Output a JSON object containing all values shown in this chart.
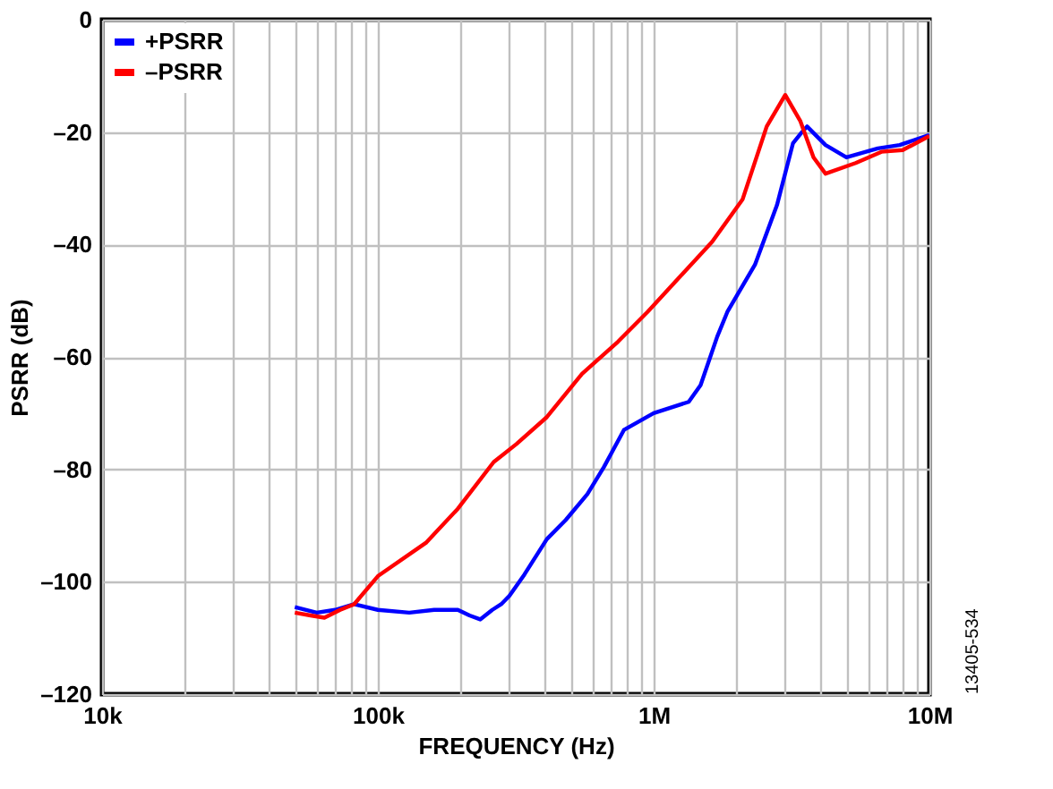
{
  "chart_data": {
    "type": "line",
    "xlabel": "FREQUENCY (Hz)",
    "ylabel": "PSRR (dB)",
    "log": "x",
    "grid": true,
    "legend": "top left",
    "line_style": "solid",
    "marker": "none",
    "xlim": [
      10000,
      10000000
    ],
    "ylim": [
      -120,
      0
    ],
    "xticks": [
      {
        "value": 10000,
        "label": "10k"
      },
      {
        "value": 20000,
        "label": null
      },
      {
        "value": 30000,
        "label": null
      },
      {
        "value": 40000,
        "label": null
      },
      {
        "value": 50000,
        "label": null
      },
      {
        "value": 60000,
        "label": null
      },
      {
        "value": 70000,
        "label": null
      },
      {
        "value": 80000,
        "label": null
      },
      {
        "value": 90000,
        "label": null
      },
      {
        "value": 100000,
        "label": "100k"
      },
      {
        "value": 200000,
        "label": null
      },
      {
        "value": 300000,
        "label": null
      },
      {
        "value": 400000,
        "label": null
      },
      {
        "value": 500000,
        "label": null
      },
      {
        "value": 600000,
        "label": null
      },
      {
        "value": 700000,
        "label": null
      },
      {
        "value": 800000,
        "label": null
      },
      {
        "value": 900000,
        "label": null
      },
      {
        "value": 1000000,
        "label": "1M"
      },
      {
        "value": 2000000,
        "label": null
      },
      {
        "value": 3000000,
        "label": null
      },
      {
        "value": 4000000,
        "label": null
      },
      {
        "value": 5000000,
        "label": null
      },
      {
        "value": 6000000,
        "label": null
      },
      {
        "value": 7000000,
        "label": null
      },
      {
        "value": 8000000,
        "label": null
      },
      {
        "value": 9000000,
        "label": null
      },
      {
        "value": 10000000,
        "label": "10M"
      }
    ],
    "yticks": [
      {
        "value": -120,
        "label": "–120"
      },
      {
        "value": -100,
        "label": "–100"
      },
      {
        "value": -80,
        "label": "–80"
      },
      {
        "value": -60,
        "label": "–60"
      },
      {
        "value": -40,
        "label": "–40"
      },
      {
        "value": -20,
        "label": "–20"
      },
      0
    ],
    "annotations": [
      "13405-534"
    ],
    "series": [
      {
        "name": "+PSRR",
        "color": "#0000ff",
        "x": [
          50000,
          60000,
          70000,
          82000,
          100000,
          130000,
          160000,
          195000,
          215000,
          235000,
          260000,
          280000,
          300000,
          340000,
          410000,
          480000,
          575000,
          660000,
          780000,
          1000000,
          1340000,
          1480000,
          1700000,
          1850000,
          2330000,
          2800000,
          3200000,
          3450000,
          3600000,
          4200000,
          5000000,
          6500000,
          7800000,
          10000000
        ],
        "values": [
          -104.5,
          -105.5,
          -105,
          -104,
          -105,
          -105.5,
          -105,
          -105,
          -106,
          -106.7,
          -105,
          -104,
          -102.5,
          -98.7,
          -92.4,
          -89,
          -84.4,
          -79.6,
          -73,
          -70,
          -68,
          -65,
          -56.4,
          -52,
          -43.6,
          -33,
          -22,
          -20,
          -19,
          -22.3,
          -24.5,
          -22.9,
          -22.3,
          -20.5
        ]
      },
      {
        "name": "–PSRR",
        "color": "#ff0000",
        "x": [
          50000,
          57000,
          64000,
          73000,
          82000,
          100000,
          150000,
          195000,
          263000,
          318000,
          410000,
          550000,
          742000,
          950000,
          1630000,
          2100000,
          2570000,
          3000000,
          3400000,
          3800000,
          4200000,
          5400000,
          6700000,
          8000000,
          10000000
        ],
        "values": [
          -105.5,
          -106,
          -106.4,
          -105,
          -104,
          -99,
          -93,
          -87,
          -78.7,
          -75.5,
          -70.7,
          -63,
          -57.3,
          -52,
          -39.5,
          -32,
          -19,
          -13.4,
          -18,
          -24.5,
          -27.4,
          -25.5,
          -23.5,
          -23.2,
          -20.7
        ]
      }
    ]
  }
}
